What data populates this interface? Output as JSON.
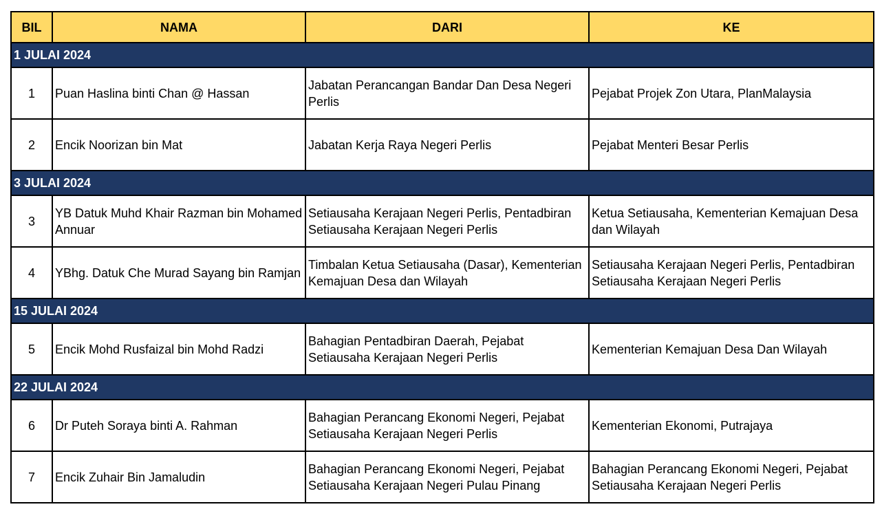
{
  "colors": {
    "header_bg": "#FFD966",
    "date_row_bg": "#1F3864"
  },
  "headers": [
    "BIL",
    "NAMA",
    "DARI",
    "KE"
  ],
  "groups": [
    {
      "date": "1 JULAI 2024",
      "rows": [
        {
          "bil": "1",
          "nama": "Puan Haslina binti Chan @ Hassan",
          "dari": "Jabatan Perancangan Bandar Dan Desa Negeri Perlis",
          "ke": "Pejabat Projek Zon Utara, PlanMalaysia"
        },
        {
          "bil": "2",
          "nama": "Encik Noorizan bin Mat",
          "dari": "Jabatan Kerja Raya Negeri Perlis",
          "ke": "Pejabat Menteri Besar Perlis"
        }
      ]
    },
    {
      "date": "3 JULAI 2024",
      "rows": [
        {
          "bil": "3",
          "nama": "YB Datuk Muhd Khair Razman bin Mohamed Annuar",
          "dari": "Setiausaha Kerajaan Negeri Perlis, Pentadbiran Setiausaha Kerajaan Negeri Perlis",
          "ke": "Ketua Setiausaha, Kementerian Kemajuan Desa dan Wilayah"
        },
        {
          "bil": "4",
          "nama": "YBhg. Datuk Che Murad Sayang bin Ramjan",
          "dari": "Timbalan Ketua Setiausaha (Dasar), Kementerian Kemajuan Desa dan Wilayah",
          "ke": "Setiausaha Kerajaan Negeri Perlis, Pentadbiran Setiausaha Kerajaan Negeri Perlis"
        }
      ]
    },
    {
      "date": "15 JULAI 2024",
      "rows": [
        {
          "bil": "5",
          "nama": "Encik Mohd Rusfaizal bin Mohd Radzi",
          "dari": "Bahagian Pentadbiran Daerah, Pejabat Setiausaha Kerajaan Negeri Perlis",
          "ke": "Kementerian Kemajuan Desa Dan Wilayah"
        }
      ]
    },
    {
      "date": "22 JULAI 2024",
      "rows": [
        {
          "bil": "6",
          "nama": "Dr Puteh Soraya binti A. Rahman",
          "dari": "Bahagian Perancang Ekonomi Negeri, Pejabat Setiausaha Kerajaan Negeri Perlis",
          "ke": "Kementerian Ekonomi, Putrajaya"
        },
        {
          "bil": "7",
          "nama": "Encik Zuhair Bin Jamaludin",
          "dari": "Bahagian Perancang Ekonomi Negeri, Pejabat Setiausaha Kerajaan Negeri Pulau Pinang",
          "ke": "Bahagian Perancang Ekonomi Negeri, Pejabat Setiausaha Kerajaan Negeri Perlis"
        }
      ]
    }
  ]
}
